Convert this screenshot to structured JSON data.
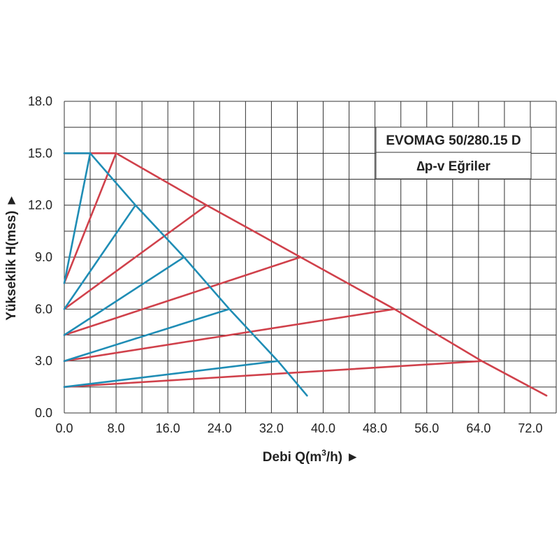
{
  "chart_data": {
    "type": "line",
    "title": "EVOMAG 50/280.15 D",
    "subtitle": "∆p-v Eğriler",
    "xlabel_prefix": "Debi Q(m",
    "xlabel_sup": "3",
    "xlabel_suffix": "/h) ►",
    "ylabel": "Yükseklik H(mss) ►",
    "xlim": [
      0,
      76
    ],
    "ylim": [
      0,
      18
    ],
    "x_grid_step": 4,
    "y_grid_step": 1.5,
    "x_ticks": [
      {
        "value": 0,
        "label": "0.0"
      },
      {
        "value": 8,
        "label": "8.0"
      },
      {
        "value": 16,
        "label": "16.0"
      },
      {
        "value": 24,
        "label": "24.0"
      },
      {
        "value": 32,
        "label": "32.0"
      },
      {
        "value": 40,
        "label": "40.0"
      },
      {
        "value": 48,
        "label": "48.0"
      },
      {
        "value": 56,
        "label": "56.0"
      },
      {
        "value": 64,
        "label": "64.0"
      },
      {
        "value": 72,
        "label": "72.0"
      }
    ],
    "y_ticks": [
      {
        "value": 0,
        "label": "0.0"
      },
      {
        "value": 3,
        "label": "3.0"
      },
      {
        "value": 6,
        "label": "6.0"
      },
      {
        "value": 9,
        "label": "9.0"
      },
      {
        "value": 12,
        "label": "12.0"
      },
      {
        "value": 15,
        "label": "15.0"
      },
      {
        "value": 18,
        "label": "18.0"
      }
    ],
    "grid": true,
    "legend": "top-right",
    "series": [
      {
        "color": "#d0414b",
        "points": [
          [
            0,
            15.0
          ],
          [
            8.0,
            15.0
          ],
          [
            22.0,
            12.0
          ],
          [
            36.5,
            9.0
          ],
          [
            51.0,
            6.0
          ],
          [
            64.5,
            3.0
          ],
          [
            74.5,
            1.0
          ]
        ]
      },
      {
        "color": "#d0414b",
        "points": [
          [
            0,
            7.5
          ],
          [
            8.0,
            15.0
          ]
        ]
      },
      {
        "color": "#d0414b",
        "points": [
          [
            0,
            6.0
          ],
          [
            22.0,
            12.0
          ]
        ]
      },
      {
        "color": "#d0414b",
        "points": [
          [
            0,
            4.5
          ],
          [
            36.5,
            9.0
          ]
        ]
      },
      {
        "color": "#d0414b",
        "points": [
          [
            0,
            3.0
          ],
          [
            51.0,
            6.0
          ]
        ]
      },
      {
        "color": "#d0414b",
        "points": [
          [
            0,
            1.5
          ],
          [
            64.5,
            3.0
          ]
        ]
      },
      {
        "color": "#1f8db5",
        "points": [
          [
            0,
            15.0
          ],
          [
            4.0,
            15.0
          ],
          [
            11.0,
            12.0
          ],
          [
            18.5,
            9.0
          ],
          [
            25.5,
            6.0
          ],
          [
            33.0,
            3.0
          ],
          [
            37.5,
            1.0
          ]
        ]
      },
      {
        "color": "#1f8db5",
        "points": [
          [
            0,
            7.5
          ],
          [
            4.0,
            15.0
          ]
        ]
      },
      {
        "color": "#1f8db5",
        "points": [
          [
            0,
            6.0
          ],
          [
            11.0,
            12.0
          ]
        ]
      },
      {
        "color": "#1f8db5",
        "points": [
          [
            0,
            4.5
          ],
          [
            18.5,
            9.0
          ]
        ]
      },
      {
        "color": "#1f8db5",
        "points": [
          [
            0,
            3.0
          ],
          [
            25.5,
            6.0
          ]
        ]
      },
      {
        "color": "#1f8db5",
        "points": [
          [
            0,
            1.5
          ],
          [
            33.0,
            3.0
          ]
        ]
      }
    ]
  }
}
